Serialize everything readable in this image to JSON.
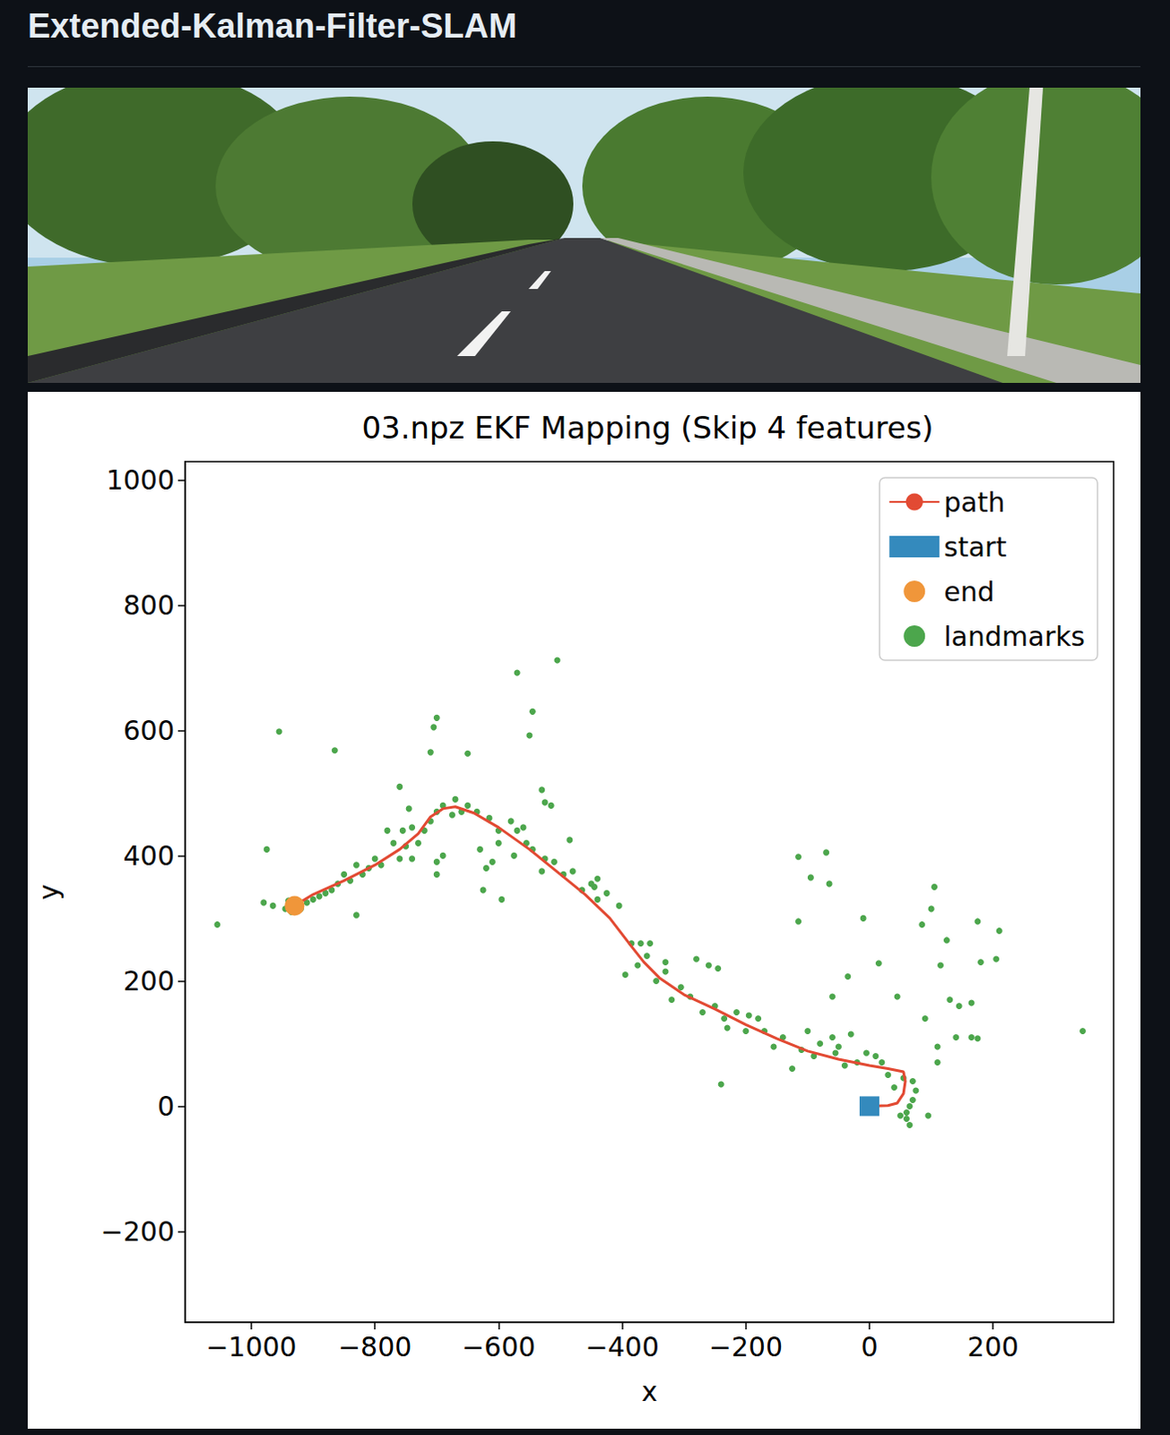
{
  "header": {
    "title": "Extended-Kalman-Filter-SLAM"
  },
  "chart_data": {
    "type": "scatter",
    "title": "03.npz EKF Mapping (Skip 4 features)",
    "x_label": "x",
    "y_label": "y",
    "xlim": [
      -1107,
      395
    ],
    "ylim": [
      -345,
      1029
    ],
    "xticks": [
      {
        "value": -1000,
        "label": "−1000"
      },
      {
        "value": -800,
        "label": "−800"
      },
      {
        "value": -600,
        "label": "−600"
      },
      {
        "value": -400,
        "label": "−400"
      },
      {
        "value": -200,
        "label": "−200"
      },
      0,
      200
    ],
    "yticks": [
      {
        "value": -200,
        "label": "−200"
      },
      0,
      200,
      400,
      600,
      800,
      1000
    ],
    "grid": false,
    "legend": "upper right",
    "series": [
      {
        "name": "path",
        "type": "line",
        "color": "#e24a33",
        "line_style": "solid",
        "values": [
          [
            0,
            0
          ],
          [
            30,
            1
          ],
          [
            45,
            5
          ],
          [
            55,
            20
          ],
          [
            58,
            40
          ],
          [
            55,
            55
          ],
          [
            30,
            60
          ],
          [
            0,
            65
          ],
          [
            -50,
            75
          ],
          [
            -100,
            88
          ],
          [
            -150,
            108
          ],
          [
            -200,
            130
          ],
          [
            -250,
            155
          ],
          [
            -300,
            178
          ],
          [
            -340,
            205
          ],
          [
            -365,
            230
          ],
          [
            -385,
            255
          ],
          [
            -420,
            300
          ],
          [
            -460,
            338
          ],
          [
            -500,
            370
          ],
          [
            -550,
            410
          ],
          [
            -600,
            445
          ],
          [
            -640,
            468
          ],
          [
            -670,
            478
          ],
          [
            -690,
            475
          ],
          [
            -710,
            462
          ],
          [
            -730,
            435
          ],
          [
            -760,
            410
          ],
          [
            -800,
            385
          ],
          [
            -850,
            360
          ],
          [
            -900,
            338
          ],
          [
            -930,
            320
          ]
        ]
      },
      {
        "name": "start",
        "type": "scatter",
        "color": "#348abd",
        "marker": "square",
        "values": [
          [
            0,
            0
          ]
        ]
      },
      {
        "name": "end",
        "type": "scatter",
        "color": "#f0963a",
        "marker": "circle",
        "values": [
          [
            -930,
            320
          ]
        ]
      },
      {
        "name": "landmarks",
        "type": "scatter",
        "color": "#4ca64c",
        "marker": "dot",
        "values": [
          [
            -1055,
            290
          ],
          [
            -975,
            410
          ],
          [
            -955,
            598
          ],
          [
            -865,
            568
          ],
          [
            -830,
            305
          ],
          [
            -700,
            620
          ],
          [
            -705,
            605
          ],
          [
            -710,
            565
          ],
          [
            -650,
            563
          ],
          [
            -570,
            692
          ],
          [
            -545,
            630
          ],
          [
            -550,
            592
          ],
          [
            -505,
            712
          ],
          [
            -530,
            505
          ],
          [
            -515,
            480
          ],
          [
            -525,
            485
          ],
          [
            -440,
            363
          ],
          [
            -445,
            350
          ],
          [
            -485,
            425
          ],
          [
            -595,
            330
          ],
          [
            -625,
            345
          ],
          [
            -610,
            390
          ],
          [
            -630,
            410
          ],
          [
            -700,
            370
          ],
          [
            -240,
            35
          ],
          [
            -115,
            398
          ],
          [
            -70,
            405
          ],
          [
            -95,
            365
          ],
          [
            -65,
            355
          ],
          [
            -115,
            295
          ],
          [
            -10,
            300
          ],
          [
            15,
            228
          ],
          [
            -35,
            207
          ],
          [
            -60,
            175
          ],
          [
            45,
            175
          ],
          [
            85,
            290
          ],
          [
            100,
            315
          ],
          [
            105,
            350
          ],
          [
            125,
            265
          ],
          [
            115,
            225
          ],
          [
            90,
            140
          ],
          [
            130,
            170
          ],
          [
            145,
            160
          ],
          [
            165,
            165
          ],
          [
            175,
            295
          ],
          [
            180,
            230
          ],
          [
            210,
            280
          ],
          [
            205,
            235
          ],
          [
            165,
            110
          ],
          [
            140,
            110
          ],
          [
            110,
            95
          ],
          [
            175,
            108
          ],
          [
            110,
            70
          ],
          [
            345,
            120
          ],
          [
            95,
            -15
          ],
          [
            -5,
            85
          ],
          [
            -30,
            115
          ],
          [
            60,
            -10
          ],
          [
            65,
            0
          ],
          [
            70,
            10
          ],
          [
            75,
            25
          ],
          [
            70,
            40
          ],
          [
            60,
            -20
          ],
          [
            65,
            -30
          ],
          [
            50,
            -15
          ],
          [
            55,
            45
          ],
          [
            40,
            30
          ],
          [
            30,
            50
          ],
          [
            20,
            70
          ],
          [
            10,
            80
          ],
          [
            -20,
            70
          ],
          [
            -40,
            65
          ],
          [
            -55,
            85
          ],
          [
            -80,
            100
          ],
          [
            -90,
            80
          ],
          [
            -110,
            90
          ],
          [
            -125,
            60
          ],
          [
            -140,
            110
          ],
          [
            -155,
            95
          ],
          [
            -180,
            140
          ],
          [
            -200,
            120
          ],
          [
            -215,
            150
          ],
          [
            -235,
            140
          ],
          [
            -250,
            160
          ],
          [
            -270,
            150
          ],
          [
            -290,
            175
          ],
          [
            -305,
            190
          ],
          [
            -320,
            170
          ],
          [
            -330,
            215
          ],
          [
            -345,
            200
          ],
          [
            -360,
            240
          ],
          [
            -375,
            225
          ],
          [
            -370,
            260
          ],
          [
            -355,
            260
          ],
          [
            -385,
            260
          ],
          [
            -395,
            210
          ],
          [
            -330,
            230
          ],
          [
            -280,
            235
          ],
          [
            -260,
            225
          ],
          [
            -245,
            220
          ],
          [
            -195,
            145
          ],
          [
            -230,
            125
          ],
          [
            -170,
            120
          ],
          [
            -100,
            120
          ],
          [
            -60,
            110
          ],
          [
            -50,
            95
          ],
          [
            -405,
            320
          ],
          [
            -425,
            340
          ],
          [
            -440,
            330
          ],
          [
            -450,
            355
          ],
          [
            -465,
            345
          ],
          [
            -480,
            375
          ],
          [
            -495,
            370
          ],
          [
            -510,
            390
          ],
          [
            -525,
            395
          ],
          [
            -530,
            375
          ],
          [
            -545,
            410
          ],
          [
            -555,
            420
          ],
          [
            -560,
            445
          ],
          [
            -570,
            440
          ],
          [
            -580,
            455
          ],
          [
            -600,
            440
          ],
          [
            -615,
            460
          ],
          [
            -635,
            470
          ],
          [
            -650,
            480
          ],
          [
            -660,
            470
          ],
          [
            -670,
            490
          ],
          [
            -675,
            465
          ],
          [
            -690,
            480
          ],
          [
            -700,
            470
          ],
          [
            -710,
            455
          ],
          [
            -720,
            440
          ],
          [
            -730,
            420
          ],
          [
            -740,
            445
          ],
          [
            -750,
            415
          ],
          [
            -755,
            440
          ],
          [
            -760,
            395
          ],
          [
            -770,
            420
          ],
          [
            -780,
            440
          ],
          [
            -790,
            385
          ],
          [
            -800,
            395
          ],
          [
            -810,
            380
          ],
          [
            -820,
            370
          ],
          [
            -830,
            385
          ],
          [
            -840,
            360
          ],
          [
            -850,
            370
          ],
          [
            -860,
            355
          ],
          [
            -870,
            345
          ],
          [
            -880,
            340
          ],
          [
            -890,
            335
          ],
          [
            -900,
            330
          ],
          [
            -910,
            325
          ],
          [
            -920,
            315
          ],
          [
            -935,
            310
          ],
          [
            -945,
            315
          ],
          [
            -965,
            320
          ],
          [
            -980,
            325
          ],
          [
            -940,
            328
          ],
          [
            -760,
            510
          ],
          [
            -745,
            475
          ],
          [
            -740,
            395
          ],
          [
            -690,
            400
          ],
          [
            -620,
            380
          ],
          [
            -700,
            390
          ],
          [
            -600,
            420
          ],
          [
            -575,
            400
          ]
        ]
      }
    ]
  }
}
